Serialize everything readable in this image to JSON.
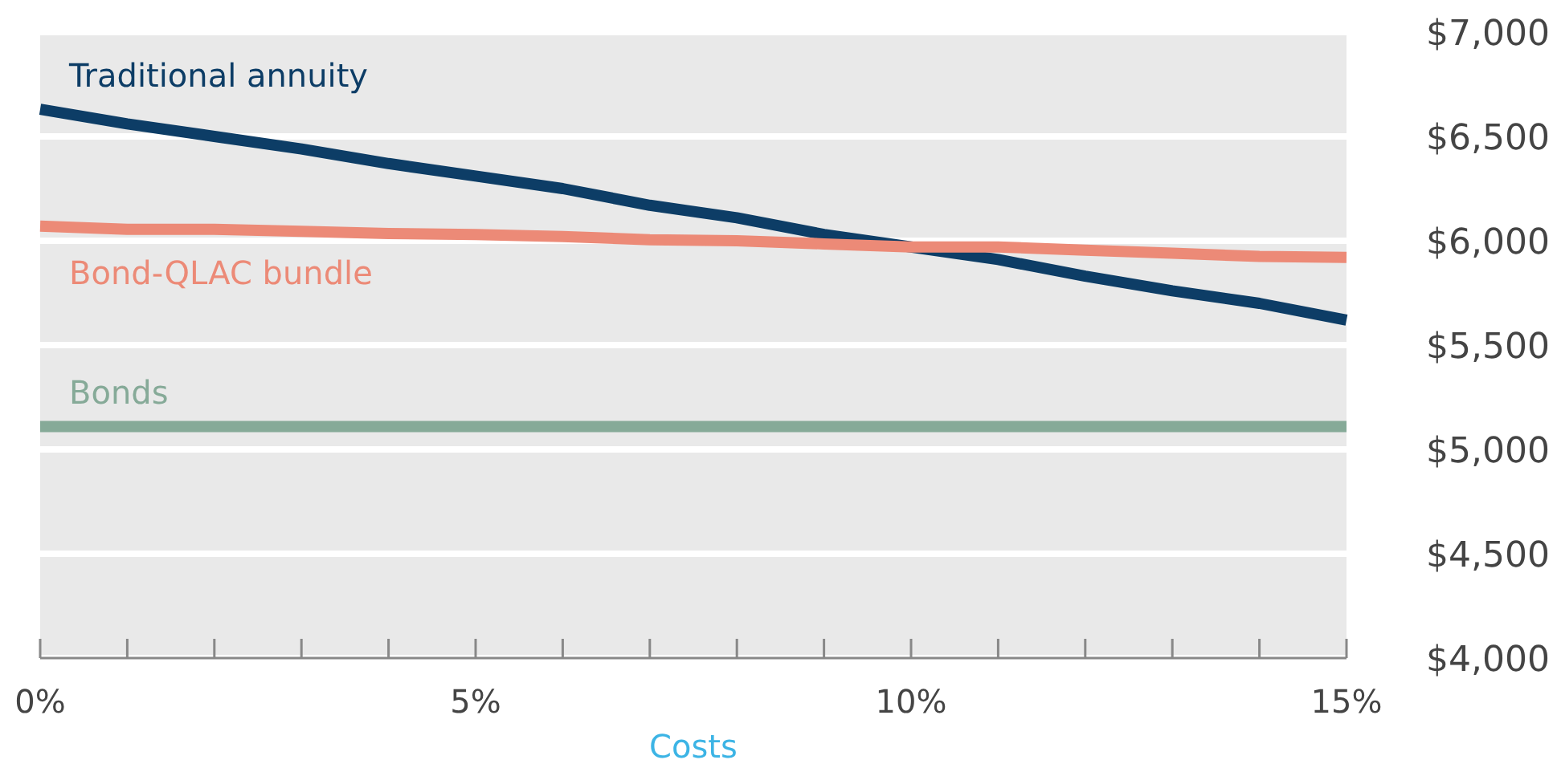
{
  "chart_data": {
    "type": "line",
    "xlabel": "Costs",
    "x": [
      0,
      1,
      2,
      3,
      4,
      5,
      6,
      7,
      8,
      9,
      10,
      11,
      12,
      13,
      14,
      15
    ],
    "series": [
      {
        "name": "Traditional annuity",
        "color": "#0d3d66",
        "values": [
          6630,
          6560,
          6500,
          6440,
          6370,
          6310,
          6250,
          6170,
          6110,
          6030,
          5970,
          5910,
          5830,
          5760,
          5700,
          5620
        ]
      },
      {
        "name": "Bond-QLAC bundle",
        "color": "#ec8a77",
        "values": [
          6070,
          6055,
          6055,
          6045,
          6035,
          6030,
          6020,
          6005,
          6000,
          5985,
          5970,
          5970,
          5955,
          5940,
          5925,
          5920
        ]
      },
      {
        "name": "Bonds",
        "color": "#86aa98",
        "values": [
          5110,
          5110,
          5110,
          5110,
          5110,
          5110,
          5110,
          5110,
          5110,
          5110,
          5110,
          5110,
          5110,
          5110,
          5110,
          5110
        ]
      }
    ],
    "xlim": [
      0,
      15
    ],
    "xticks": [
      {
        "value": 0,
        "label": "0%"
      },
      {
        "value": 1,
        "label": null
      },
      {
        "value": 2,
        "label": null
      },
      {
        "value": 3,
        "label": null
      },
      {
        "value": 4,
        "label": null
      },
      {
        "value": 5,
        "label": "5%"
      },
      {
        "value": 6,
        "label": null
      },
      {
        "value": 7,
        "label": null
      },
      {
        "value": 8,
        "label": null
      },
      {
        "value": 9,
        "label": null
      },
      {
        "value": 10,
        "label": "10%"
      },
      {
        "value": 11,
        "label": null
      },
      {
        "value": 12,
        "label": null
      },
      {
        "value": 13,
        "label": null
      },
      {
        "value": 14,
        "label": null
      },
      {
        "value": 15,
        "label": "15%"
      }
    ],
    "ylim": [
      4000,
      7000
    ],
    "yticks": [
      {
        "value": 4000,
        "label": "$4,000"
      },
      {
        "value": 4500,
        "label": "$4,500"
      },
      {
        "value": 5000,
        "label": "$5,000"
      },
      {
        "value": 5500,
        "label": "$5,500"
      },
      {
        "value": 6000,
        "label": "$6,000"
      },
      {
        "value": 6500,
        "label": "$6,500"
      },
      {
        "value": 7000,
        "label": "$7,000"
      }
    ],
    "grid": "y",
    "marker": "none",
    "line_style": "solid"
  }
}
